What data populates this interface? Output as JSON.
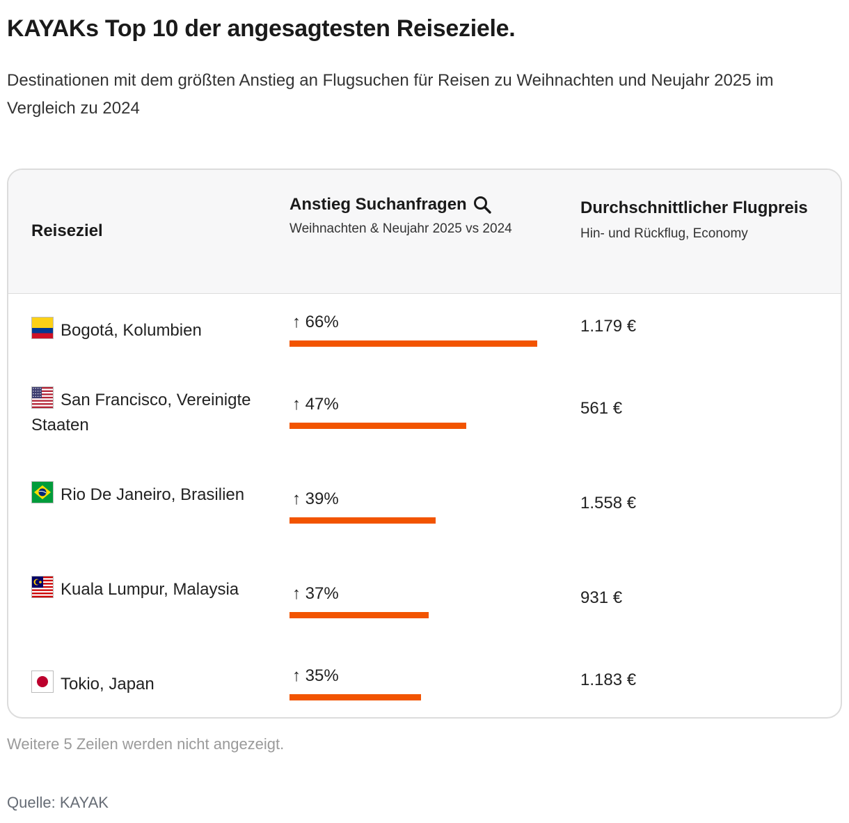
{
  "title": "KAYAKs Top 10 der angesagtesten Reiseziele.",
  "subtitle": "Destinationen mit dem größten Anstieg an Flugsuchen für Reisen zu Weihnachten und Neujahr 2025 im Vergleich zu 2024",
  "table": {
    "col_destination": "Reiseziel",
    "col_search": "Anstieg Suchanfragen",
    "col_search_sub": "Weihnachten & Neujahr 2025 vs 2024",
    "col_price": "Durchschnittlicher Flugpreis",
    "col_price_sub": "Hin- und Rückflug, Economy",
    "search_icon": "magnifier-icon"
  },
  "chart_data": {
    "type": "table",
    "categories": [
      "Bogotá, Kolumbien",
      "San Francisco, Vereinigte Staaten",
      "Rio De Janeiro, Brasilien",
      "Kuala Lumpur, Malaysia",
      "Tokio, Japan"
    ],
    "rows": [
      {
        "destination": "Bogotá, Kolumbien",
        "flag": "colombia-flag-icon",
        "increase_label": "↑ 66%",
        "increase": 66,
        "price": "1.179 €"
      },
      {
        "destination": "San Francisco, Vereinigte Staaten",
        "flag": "usa-flag-icon",
        "increase_label": "↑ 47%",
        "increase": 47,
        "price": "561 €"
      },
      {
        "destination": "Rio De Janeiro, Brasilien",
        "flag": "brazil-flag-icon",
        "increase_label": "↑ 39%",
        "increase": 39,
        "price": "1.558 €"
      },
      {
        "destination": "Kuala Lumpur, Malaysia",
        "flag": "malaysia-flag-icon",
        "increase_label": "↑ 37%",
        "increase": 37,
        "price": "931 €"
      },
      {
        "destination": "Tokio, Japan",
        "flag": "japan-flag-icon",
        "increase_label": "↑ 35%",
        "increase": 35,
        "price": "1.183 €"
      }
    ],
    "bar_color": "#f25400"
  },
  "footer": {
    "more_rows": "Weitere 5 Zeilen werden nicht angezeigt.",
    "source": "Quelle: KAYAK"
  }
}
